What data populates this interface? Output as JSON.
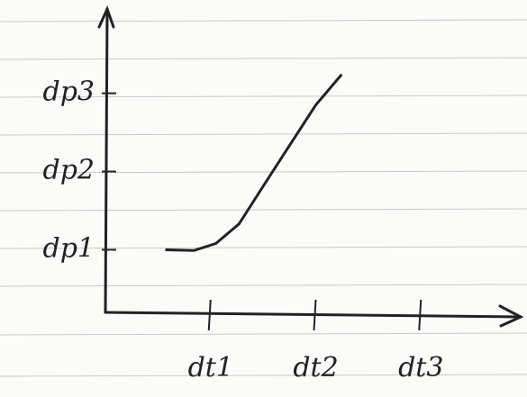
{
  "chart_data": {
    "type": "line",
    "x": [
      0.58,
      0.84,
      1.05,
      1.27,
      1.48,
      1.74,
      2.0,
      2.24
    ],
    "values": [
      1.0,
      0.99,
      1.08,
      1.33,
      1.77,
      2.31,
      2.85,
      3.23
    ],
    "color": "#222222",
    "xlim": [
      0,
      4
    ],
    "ylim": [
      0.2,
      4.1
    ],
    "xticks": [
      {
        "value": 1,
        "label": "dt1"
      },
      {
        "value": 2,
        "label": "dt2"
      },
      {
        "value": 3,
        "label": "dt3"
      }
    ],
    "yticks": [
      {
        "value": 1,
        "label": "dp1"
      },
      {
        "value": 2,
        "label": "dp2"
      },
      {
        "value": 3,
        "label": "dp3"
      }
    ],
    "grid": false
  }
}
